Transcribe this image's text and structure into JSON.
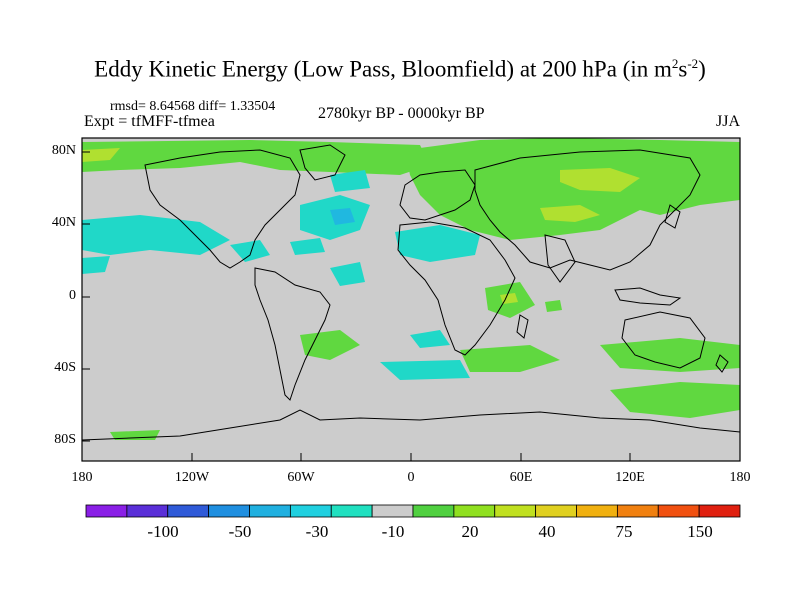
{
  "title": {
    "main": "Eddy Kinetic Energy (Low Pass, Bloomfield) at 200 hPa (in m",
    "sup1": "2",
    "mid": "s",
    "sup2": "-2",
    "end": ")"
  },
  "stats": "rmsd= 8.64568 diff= 1.33504",
  "expt": "Expt = tfMFF-tfmea",
  "period": "2780kyr BP - 0000kyr BP",
  "season": "JJA",
  "lat_labels": [
    "80N",
    "40N",
    "0",
    "40S",
    "80S"
  ],
  "lon_labels": [
    "180",
    "120W",
    "60W",
    "0",
    "60E",
    "120E",
    "180"
  ],
  "colorbar": {
    "labels": [
      "-100",
      "-50",
      "-30",
      "-10",
      "20",
      "40",
      "75",
      "150"
    ],
    "colors": [
      "#8a1fe6",
      "#5a2fd8",
      "#2f5ad8",
      "#1f8fe0",
      "#20b0e0",
      "#20d0e0",
      "#20e0c0",
      "#cccccc",
      "#50d040",
      "#90e020",
      "#c0e020",
      "#e0d020",
      "#f0b010",
      "#f08010",
      "#f05010",
      "#e02010"
    ]
  },
  "colors": {
    "land_fill": "#cccccc",
    "neg_small": "#20d8c8",
    "neg_mid": "#20b8e0",
    "pos_small": "#60d840",
    "pos_mid": "#b0e030"
  }
}
